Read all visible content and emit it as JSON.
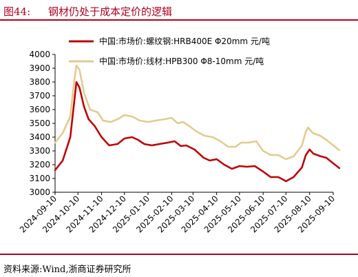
{
  "header": {
    "fig_label": "图44:",
    "title": "钢材仍处于成本定价的逻辑"
  },
  "footer": {
    "source": "资料来源:Wind,浙商证券研究所"
  },
  "colors": {
    "accent": "#b0001e",
    "series1": "#c00000",
    "series2": "#e3cb8e"
  },
  "chart_data": {
    "type": "line",
    "xlabel": "",
    "ylabel": "",
    "ylim": [
      3000,
      4000
    ],
    "yticks": [
      3000,
      3100,
      3200,
      3300,
      3400,
      3500,
      3600,
      3700,
      3800,
      3900,
      4000
    ],
    "grid": false,
    "legend_position": "top-right",
    "x_ticks": [
      "2024-09-10",
      "2024-10-10",
      "2024-11-10",
      "2024-12-10",
      "2025-01-10",
      "2025-02-10",
      "2025-03-10",
      "2025-04-10",
      "2025-05-10",
      "2025-06-10",
      "2025-07-10",
      "2025-08-10",
      "2025-09-10"
    ],
    "series": [
      {
        "name": "中国:市场价:螺纹钢:HRB400E Φ20mm 元/吨",
        "color": "#c00000",
        "points": [
          [
            "2024-09-10",
            3160
          ],
          [
            "2024-09-20",
            3230
          ],
          [
            "2024-09-30",
            3400
          ],
          [
            "2024-10-05",
            3650
          ],
          [
            "2024-10-08",
            3800
          ],
          [
            "2024-10-12",
            3760
          ],
          [
            "2024-10-18",
            3620
          ],
          [
            "2024-10-24",
            3530
          ],
          [
            "2024-11-01",
            3480
          ],
          [
            "2024-11-10",
            3400
          ],
          [
            "2024-11-20",
            3340
          ],
          [
            "2024-12-01",
            3350
          ],
          [
            "2024-12-10",
            3390
          ],
          [
            "2024-12-20",
            3400
          ],
          [
            "2024-12-28",
            3380
          ],
          [
            "2025-01-05",
            3350
          ],
          [
            "2025-01-15",
            3340
          ],
          [
            "2025-01-25",
            3350
          ],
          [
            "2025-02-05",
            3360
          ],
          [
            "2025-02-14",
            3370
          ],
          [
            "2025-02-22",
            3335
          ],
          [
            "2025-03-01",
            3340
          ],
          [
            "2025-03-12",
            3310
          ],
          [
            "2025-03-24",
            3250
          ],
          [
            "2025-04-01",
            3230
          ],
          [
            "2025-04-10",
            3240
          ],
          [
            "2025-04-20",
            3200
          ],
          [
            "2025-04-30",
            3170
          ],
          [
            "2025-05-10",
            3190
          ],
          [
            "2025-05-20",
            3185
          ],
          [
            "2025-05-30",
            3190
          ],
          [
            "2025-06-10",
            3150
          ],
          [
            "2025-06-20",
            3110
          ],
          [
            "2025-06-30",
            3110
          ],
          [
            "2025-07-10",
            3080
          ],
          [
            "2025-07-20",
            3110
          ],
          [
            "2025-07-31",
            3180
          ],
          [
            "2025-08-05",
            3270
          ],
          [
            "2025-08-10",
            3310
          ],
          [
            "2025-08-15",
            3280
          ],
          [
            "2025-08-25",
            3260
          ],
          [
            "2025-09-01",
            3250
          ],
          [
            "2025-09-10",
            3210
          ],
          [
            "2025-09-18",
            3175
          ]
        ]
      },
      {
        "name": "中国:市场价:线材:HPB300 Φ8-10mm 元/吨",
        "color": "#e3cb8e",
        "points": [
          [
            "2024-09-10",
            3360
          ],
          [
            "2024-09-20",
            3430
          ],
          [
            "2024-09-30",
            3550
          ],
          [
            "2024-10-05",
            3800
          ],
          [
            "2024-10-08",
            3920
          ],
          [
            "2024-10-12",
            3890
          ],
          [
            "2024-10-18",
            3720
          ],
          [
            "2024-10-26",
            3600
          ],
          [
            "2024-11-05",
            3580
          ],
          [
            "2024-11-12",
            3520
          ],
          [
            "2024-11-22",
            3510
          ],
          [
            "2024-12-01",
            3530
          ],
          [
            "2024-12-10",
            3560
          ],
          [
            "2024-12-20",
            3550
          ],
          [
            "2024-12-30",
            3520
          ],
          [
            "2025-01-10",
            3510
          ],
          [
            "2025-01-20",
            3520
          ],
          [
            "2025-02-01",
            3530
          ],
          [
            "2025-02-10",
            3540
          ],
          [
            "2025-02-18",
            3500
          ],
          [
            "2025-02-25",
            3510
          ],
          [
            "2025-03-05",
            3480
          ],
          [
            "2025-03-15",
            3440
          ],
          [
            "2025-03-25",
            3410
          ],
          [
            "2025-04-05",
            3400
          ],
          [
            "2025-04-15",
            3370
          ],
          [
            "2025-04-25",
            3330
          ],
          [
            "2025-05-05",
            3330
          ],
          [
            "2025-05-12",
            3360
          ],
          [
            "2025-05-22",
            3360
          ],
          [
            "2025-06-01",
            3370
          ],
          [
            "2025-06-10",
            3300
          ],
          [
            "2025-06-20",
            3270
          ],
          [
            "2025-06-30",
            3270
          ],
          [
            "2025-07-10",
            3240
          ],
          [
            "2025-07-20",
            3260
          ],
          [
            "2025-07-31",
            3340
          ],
          [
            "2025-08-05",
            3440
          ],
          [
            "2025-08-08",
            3470
          ],
          [
            "2025-08-14",
            3430
          ],
          [
            "2025-08-24",
            3410
          ],
          [
            "2025-09-01",
            3380
          ],
          [
            "2025-09-10",
            3340
          ],
          [
            "2025-09-18",
            3305
          ]
        ]
      }
    ]
  }
}
